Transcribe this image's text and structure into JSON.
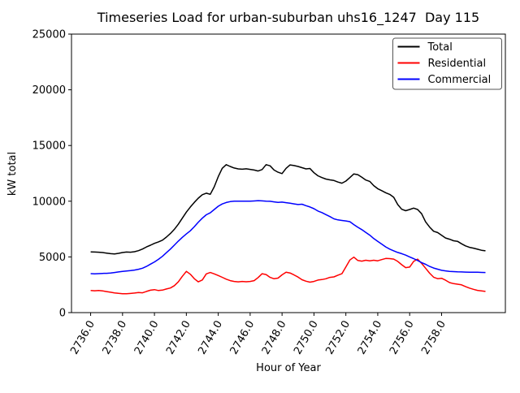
{
  "figure": {
    "background": "#ffffff"
  },
  "chart_data": {
    "type": "line",
    "title": "Timeseries Load for urban-suburban uhs16_1247  Day 115",
    "xlabel": "Hour of Year",
    "ylabel": "kW total",
    "xlim": [
      2734.8,
      2762.0
    ],
    "ylim": [
      0,
      25000
    ],
    "grid": false,
    "x_ticks": [
      2736,
      2738,
      2740,
      2742,
      2744,
      2746,
      2748,
      2750,
      2752,
      2754,
      2756,
      2758
    ],
    "x_tick_labels": [
      "2736.0",
      "2738.0",
      "2740.0",
      "2742.0",
      "2744.0",
      "2746.0",
      "2748.0",
      "2750.0",
      "2752.0",
      "2754.0",
      "2756.0",
      "2758.0"
    ],
    "x_tick_rotation_deg": 60,
    "y_ticks": [
      0,
      5000,
      10000,
      15000,
      20000,
      25000
    ],
    "y_tick_labels": [
      "0",
      "5000",
      "10000",
      "15000",
      "20000",
      "25000"
    ],
    "x_start": 2736.0,
    "x_step": 0.25,
    "legend": {
      "position": "upper right",
      "entries": [
        "Total",
        "Residential",
        "Commercial"
      ]
    },
    "series": [
      {
        "name": "Total",
        "color": "#000000",
        "values": [
          5450,
          5440,
          5420,
          5390,
          5340,
          5290,
          5270,
          5320,
          5390,
          5440,
          5420,
          5470,
          5560,
          5710,
          5900,
          6050,
          6220,
          6350,
          6500,
          6780,
          7100,
          7480,
          7940,
          8480,
          9020,
          9480,
          9900,
          10280,
          10580,
          10720,
          10620,
          11300,
          12200,
          12950,
          13280,
          13120,
          12980,
          12900,
          12870,
          12910,
          12860,
          12800,
          12710,
          12840,
          13280,
          13180,
          12800,
          12600,
          12480,
          12950,
          13260,
          13200,
          13120,
          13010,
          12900,
          12940,
          12560,
          12280,
          12120,
          11990,
          11920,
          11860,
          11720,
          11620,
          11810,
          12120,
          12450,
          12380,
          12150,
          11900,
          11780,
          11400,
          11120,
          10950,
          10760,
          10610,
          10350,
          9700,
          9280,
          9150,
          9260,
          9380,
          9260,
          8880,
          8150,
          7680,
          7300,
          7190,
          6940,
          6700,
          6590,
          6450,
          6400,
          6180,
          5990,
          5860,
          5790,
          5690,
          5600,
          5550
        ]
      },
      {
        "name": "Residential",
        "color": "#ff0000",
        "values": [
          1980,
          1960,
          1990,
          1950,
          1890,
          1830,
          1770,
          1730,
          1700,
          1690,
          1720,
          1760,
          1810,
          1780,
          1900,
          2010,
          2060,
          1980,
          2020,
          2120,
          2210,
          2420,
          2760,
          3260,
          3700,
          3440,
          3040,
          2760,
          2930,
          3480,
          3600,
          3480,
          3330,
          3170,
          3000,
          2870,
          2800,
          2760,
          2800,
          2770,
          2800,
          2870,
          3150,
          3490,
          3420,
          3160,
          3040,
          3100,
          3390,
          3620,
          3560,
          3380,
          3190,
          2950,
          2820,
          2730,
          2800,
          2920,
          2970,
          3040,
          3160,
          3210,
          3360,
          3490,
          4100,
          4720,
          4980,
          4680,
          4620,
          4700,
          4640,
          4700,
          4650,
          4760,
          4860,
          4850,
          4800,
          4600,
          4300,
          4040,
          4090,
          4600,
          4800,
          4420,
          3990,
          3540,
          3180,
          3050,
          3080,
          2910,
          2700,
          2600,
          2550,
          2490,
          2340,
          2200,
          2090,
          2000,
          1950,
          1900
        ]
      },
      {
        "name": "Commercial",
        "color": "#0000ff",
        "values": [
          3500,
          3480,
          3500,
          3520,
          3530,
          3560,
          3600,
          3650,
          3700,
          3730,
          3770,
          3820,
          3890,
          3990,
          4150,
          4350,
          4550,
          4780,
          5050,
          5380,
          5700,
          6060,
          6420,
          6760,
          7060,
          7350,
          7720,
          8120,
          8480,
          8780,
          8960,
          9260,
          9550,
          9750,
          9880,
          9960,
          10000,
          10010,
          10000,
          10010,
          10000,
          10020,
          10050,
          10030,
          10000,
          9990,
          9940,
          9900,
          9920,
          9870,
          9820,
          9760,
          9700,
          9730,
          9600,
          9480,
          9330,
          9120,
          8980,
          8800,
          8620,
          8420,
          8320,
          8270,
          8230,
          8160,
          7900,
          7660,
          7450,
          7200,
          6950,
          6650,
          6400,
          6150,
          5900,
          5700,
          5550,
          5400,
          5290,
          5160,
          5000,
          4850,
          4680,
          4490,
          4340,
          4150,
          4000,
          3900,
          3800,
          3750,
          3700,
          3680,
          3660,
          3650,
          3640,
          3630,
          3620,
          3620,
          3610,
          3600
        ]
      }
    ]
  }
}
